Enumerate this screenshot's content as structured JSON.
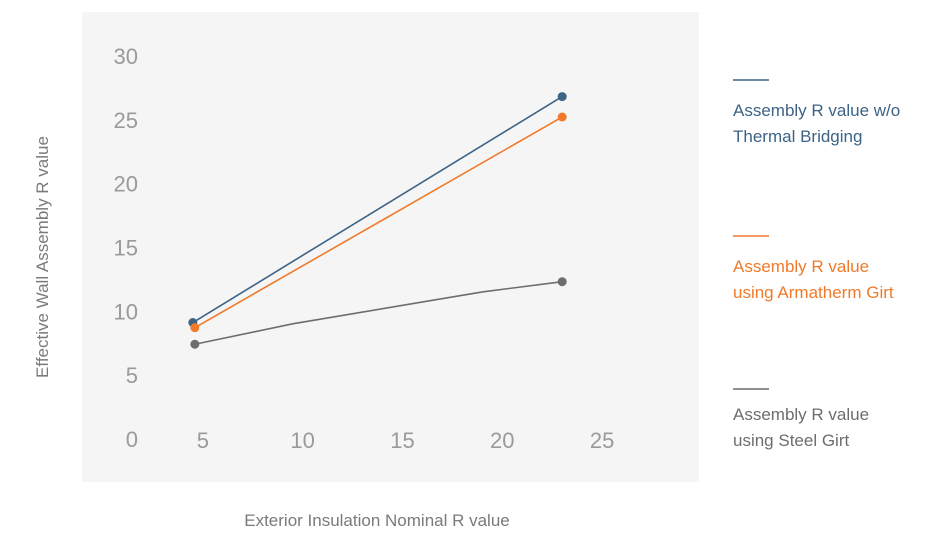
{
  "chart_data": {
    "type": "line",
    "title": "",
    "xlabel": "Exterior Insulation Nominal R value",
    "ylabel": "Effective Wall Assembly R value",
    "x_ticks": [
      5,
      10,
      15,
      20,
      25
    ],
    "y_ticks": [
      0,
      5,
      10,
      15,
      20,
      25,
      30
    ],
    "xlim": [
      0,
      28.5
    ],
    "ylim": [
      0,
      30
    ],
    "grid": false,
    "legend_position": "right",
    "series": [
      {
        "name": "Assembly R value w/o Thermal Bridging",
        "color": "#3d6385",
        "x": [
          4.5,
          23
        ],
        "y": [
          9.2,
          26.9
        ]
      },
      {
        "name": "Assembly R value using Armatherm Girt",
        "color": "#f07a2a",
        "x": [
          4.6,
          23
        ],
        "y": [
          8.8,
          25.3
        ]
      },
      {
        "name": "Assembly R value using Steel Girt",
        "color": "#6d6d6d",
        "x": [
          4.6,
          9.5,
          19,
          23
        ],
        "y": [
          7.5,
          9.1,
          11.6,
          12.4
        ]
      }
    ]
  }
}
